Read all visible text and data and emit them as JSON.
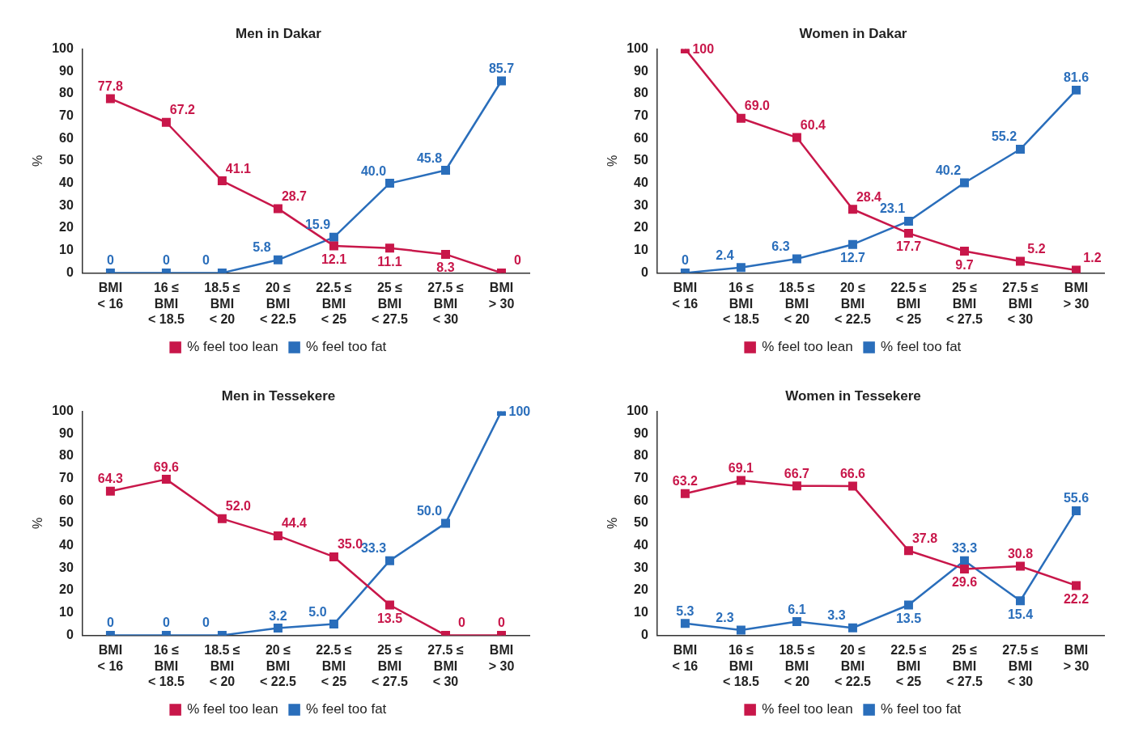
{
  "chart_data": [
    {
      "type": "line",
      "title": "Men in Dakar",
      "ylabel": "%",
      "categories": [
        "BMI\n< 16",
        "16 ≤\nBMI\n< 18.5",
        "18.5 ≤\nBMI\n< 20",
        "20 ≤\nBMI\n< 22.5",
        "22.5 ≤\nBMI\n< 25",
        "25 ≤\nBMI\n< 27.5",
        "27.5 ≤\nBMI\n< 30",
        "BMI\n> 30"
      ],
      "ylim": [
        0,
        100
      ],
      "yticks": [
        0,
        10,
        20,
        30,
        40,
        50,
        60,
        70,
        80,
        90,
        100
      ],
      "grid": false,
      "legend": "bottom",
      "marker": "square",
      "line_style": "solid",
      "series": [
        {
          "name": "% feel too lean",
          "color": "#c8174a",
          "values": [
            77.8,
            67.2,
            41.1,
            28.7,
            12.1,
            11.1,
            8.3,
            0
          ],
          "value_labels": [
            "77.8",
            "67.2",
            "41.1",
            "28.7",
            "12.1",
            "11.1",
            "8.3",
            "0"
          ]
        },
        {
          "name": "% feel too fat",
          "color": "#2a6ebb",
          "values": [
            0,
            0,
            0,
            5.8,
            15.9,
            40.0,
            45.8,
            85.7
          ],
          "value_labels": [
            "0",
            "0",
            "0",
            "5.8",
            "15.9",
            "40.0",
            "45.8",
            "85.7"
          ]
        }
      ]
    },
    {
      "type": "line",
      "title": "Women in Dakar",
      "ylabel": "%",
      "categories": [
        "BMI\n< 16",
        "16 ≤\nBMI\n< 18.5",
        "18.5 ≤\nBMI\n< 20",
        "20 ≤\nBMI\n< 22.5",
        "22.5 ≤\nBMI\n< 25",
        "25 ≤\nBMI\n< 27.5",
        "27.5 ≤\nBMI\n< 30",
        "BMI\n> 30"
      ],
      "ylim": [
        0,
        100
      ],
      "yticks": [
        0,
        10,
        20,
        30,
        40,
        50,
        60,
        70,
        80,
        90,
        100
      ],
      "grid": false,
      "legend": "bottom",
      "marker": "square",
      "line_style": "solid",
      "series": [
        {
          "name": "% feel too lean",
          "color": "#c8174a",
          "values": [
            100,
            69.0,
            60.4,
            28.4,
            17.7,
            9.7,
            5.2,
            1.2
          ],
          "value_labels": [
            "100",
            "69.0",
            "60.4",
            "28.4",
            "17.7",
            "9.7",
            "5.2",
            "1.2"
          ]
        },
        {
          "name": "% feel too fat",
          "color": "#2a6ebb",
          "values": [
            0,
            2.4,
            6.3,
            12.7,
            23.1,
            40.2,
            55.2,
            81.6
          ],
          "value_labels": [
            "0",
            "2.4",
            "6.3",
            "12.7",
            "23.1",
            "40.2",
            "55.2",
            "81.6"
          ]
        }
      ]
    },
    {
      "type": "line",
      "title": "Men in Tessekere",
      "ylabel": "%",
      "categories": [
        "BMI\n< 16",
        "16 ≤\nBMI\n< 18.5",
        "18.5 ≤\nBMI\n< 20",
        "20 ≤\nBMI\n< 22.5",
        "22.5 ≤\nBMI\n< 25",
        "25 ≤\nBMI\n< 27.5",
        "27.5 ≤\nBMI\n< 30",
        "BMI\n> 30"
      ],
      "ylim": [
        0,
        100
      ],
      "yticks": [
        0,
        10,
        20,
        30,
        40,
        50,
        60,
        70,
        80,
        90,
        100
      ],
      "grid": false,
      "legend": "bottom",
      "marker": "square",
      "line_style": "solid",
      "series": [
        {
          "name": "% feel too lean",
          "color": "#c8174a",
          "values": [
            64.3,
            69.6,
            52.0,
            44.4,
            35.0,
            13.5,
            0,
            0
          ],
          "value_labels": [
            "64.3",
            "69.6",
            "52.0",
            "44.4",
            "35.0",
            "13.5",
            "0",
            "0"
          ]
        },
        {
          "name": "% feel too fat",
          "color": "#2a6ebb",
          "values": [
            0,
            0,
            0,
            3.2,
            5.0,
            33.3,
            50.0,
            100
          ],
          "value_labels": [
            "0",
            "0",
            "0",
            "3.2",
            "5.0",
            "33.3",
            "50.0",
            "100"
          ]
        }
      ]
    },
    {
      "type": "line",
      "title": "Women in Tessekere",
      "ylabel": "%",
      "categories": [
        "BMI\n< 16",
        "16 ≤\nBMI\n< 18.5",
        "18.5 ≤\nBMI\n< 20",
        "20 ≤\nBMI\n< 22.5",
        "22.5 ≤\nBMI\n< 25",
        "25 ≤\nBMI\n< 27.5",
        "27.5 ≤\nBMI\n< 30",
        "BMI\n> 30"
      ],
      "ylim": [
        0,
        100
      ],
      "yticks": [
        0,
        10,
        20,
        30,
        40,
        50,
        60,
        70,
        80,
        90,
        100
      ],
      "grid": false,
      "legend": "bottom",
      "marker": "square",
      "line_style": "solid",
      "series": [
        {
          "name": "% feel too lean",
          "color": "#c8174a",
          "values": [
            63.2,
            69.1,
            66.7,
            66.6,
            37.8,
            29.6,
            30.8,
            22.2
          ],
          "value_labels": [
            "63.2",
            "69.1",
            "66.7",
            "66.6",
            "37.8",
            "29.6",
            "30.8",
            "22.2"
          ]
        },
        {
          "name": "% feel too fat",
          "color": "#2a6ebb",
          "values": [
            5.3,
            2.3,
            6.1,
            3.3,
            13.5,
            33.3,
            15.4,
            55.6
          ],
          "value_labels": [
            "5.3",
            "2.3",
            "6.1",
            "3.3",
            "13.5",
            "33.3",
            "15.4",
            "55.6"
          ]
        }
      ]
    }
  ]
}
